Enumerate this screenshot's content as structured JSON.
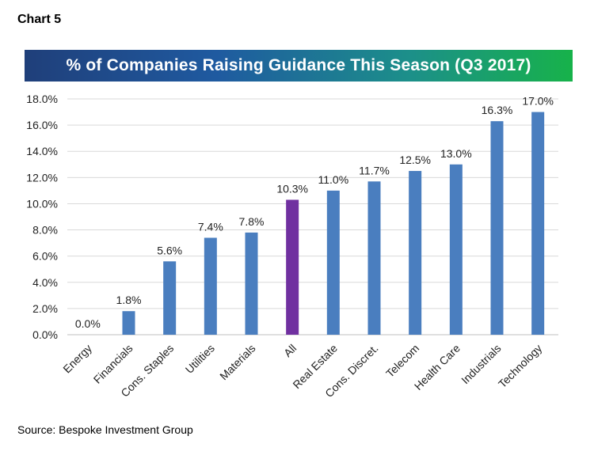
{
  "header": {
    "chart_label": "Chart 5"
  },
  "footer": {
    "source": "Source: Bespoke Investment Group"
  },
  "colors": {
    "bar": "#4a7ebf",
    "highlight": "#7030a0",
    "grid": "#d9d9d9"
  },
  "chart_data": {
    "type": "bar",
    "title": "% of Companies Raising Guidance This Season (Q3 2017)",
    "categories": [
      "Energy",
      "Financials",
      "Cons. Staples",
      "Utilities",
      "Materials",
      "All",
      "Real Estate",
      "Cons. Discret.",
      "Telecom",
      "Health Care",
      "Industrials",
      "Technology"
    ],
    "values": [
      0.0,
      1.8,
      5.6,
      7.4,
      7.8,
      10.3,
      11.0,
      11.7,
      12.5,
      13.0,
      16.3,
      17.0
    ],
    "data_labels": [
      "0.0%",
      "1.8%",
      "5.6%",
      "7.4%",
      "7.8%",
      "10.3%",
      "11.0%",
      "11.7%",
      "12.5%",
      "13.0%",
      "16.3%",
      "17.0%"
    ],
    "highlight_category": "All",
    "ylim": [
      0,
      18
    ],
    "yticks": [
      0,
      2,
      4,
      6,
      8,
      10,
      12,
      14,
      16,
      18
    ],
    "ytick_labels": [
      "0.0%",
      "2.0%",
      "4.0%",
      "6.0%",
      "8.0%",
      "10.0%",
      "12.0%",
      "14.0%",
      "16.0%",
      "18.0%"
    ],
    "grid": true,
    "legend": "none"
  }
}
